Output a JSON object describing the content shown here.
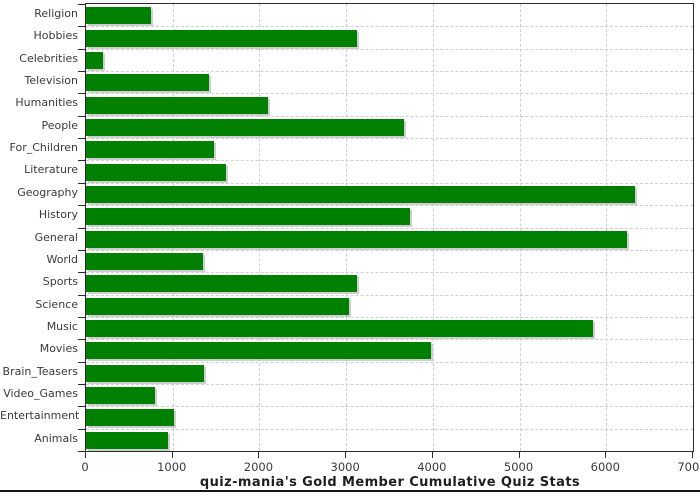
{
  "chart_data": {
    "type": "bar",
    "orientation": "horizontal",
    "title": "quiz-mania's Gold Member Cumulative Quiz Stats",
    "xlabel": "",
    "ylabel": "",
    "xlim": [
      0,
      7000
    ],
    "x_ticks": [
      0,
      1000,
      2000,
      3000,
      4000,
      5000,
      6000,
      7000
    ],
    "grid": true,
    "legend": false,
    "bar_color": "#008000",
    "categories": [
      "Religion",
      "Hobbies",
      "Celebrities",
      "Television",
      "Humanities",
      "People",
      "For_Children",
      "Literature",
      "Geography",
      "History",
      "General",
      "World",
      "Sports",
      "Science",
      "Music",
      "Movies",
      "Brain_Teasers",
      "Video_Games",
      "Entertainment",
      "Animals"
    ],
    "values": [
      750,
      3120,
      200,
      1420,
      2100,
      3670,
      1480,
      1610,
      6330,
      3740,
      6240,
      1350,
      3120,
      3030,
      5850,
      3980,
      1360,
      800,
      1010,
      950
    ]
  },
  "colors": {
    "bar": "#008000",
    "bar_shadow": "#a5a5a5",
    "grid": "#cfcfcf",
    "axis": "#2b2b2b",
    "tick_label": "#3a3a3a",
    "title": "#1f1f1f",
    "background": "#ffffff"
  }
}
